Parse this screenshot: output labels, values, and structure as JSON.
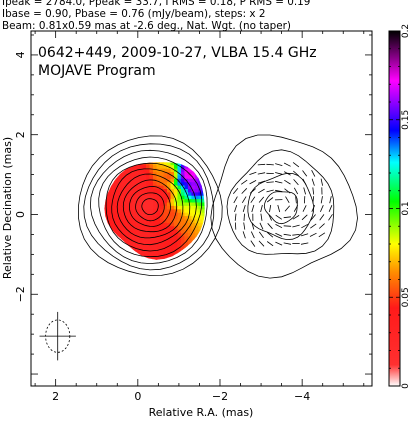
{
  "header": {
    "line1": "Ipeak = 2784.0, Ppeak = 33.7, I RMS = 0.18, P RMS = 0.19",
    "line2": "Ibase = 0.90, Pbase = 0.76 (mJy/beam), steps: x 2",
    "line3": "Beam: 0.81x0.59 mas at -2.6 deg., Nat. Wgt. (no taper)"
  },
  "panel": {
    "title": "0642+449, 2009-10-27, VLBA 15.4 GHz",
    "program": "MOJAVE Program"
  },
  "chart_data": {
    "type": "heatmap",
    "xlabel": "Relative R.A. (mas)",
    "ylabel": "Relative Decination (mas)",
    "xlim": [
      2.6,
      -5.7
    ],
    "ylim": [
      -4.3,
      4.6
    ],
    "x_ticks": [
      2,
      0,
      -2,
      -4
    ],
    "x_tick_labels": [
      "2",
      "0",
      "−2",
      "−4"
    ],
    "y_ticks": [
      4,
      2,
      0,
      -2
    ],
    "y_tick_labels": [
      "4",
      "2",
      "0",
      "−2"
    ],
    "colorbar": {
      "min": 0,
      "max": 0.2,
      "ticks": [
        0,
        0.05,
        0.1,
        0.15,
        0.2
      ],
      "tick_labels": [
        "0",
        "0.05",
        "0.1",
        "0.15",
        "0.2"
      ]
    },
    "left_panel": {
      "center": [
        -0.3,
        0.2
      ],
      "contour_radii": [
        0.2,
        0.35,
        0.5,
        0.65,
        0.8,
        0.95,
        1.1,
        1.25,
        1.42,
        1.58,
        1.75
      ],
      "frac_pol": [
        [
          -1.15,
          0.95,
          0.18
        ],
        [
          -1.0,
          0.8,
          0.15
        ],
        [
          -1.25,
          0.6,
          0.17
        ],
        [
          -1.1,
          0.5,
          0.12
        ],
        [
          -0.95,
          0.3,
          0.09
        ],
        [
          -1.2,
          0.1,
          0.08
        ],
        [
          -1.0,
          -0.2,
          0.06
        ],
        [
          -0.85,
          0.55,
          0.07
        ],
        [
          -0.8,
          0.0,
          0.05
        ],
        [
          -0.7,
          -0.5,
          0.04
        ],
        [
          -0.75,
          0.9,
          0.05
        ],
        [
          -0.6,
          0.45,
          0.03
        ],
        [
          -0.2,
          0.2,
          0.02
        ],
        [
          -0.2,
          -0.7,
          0.03
        ],
        [
          0.1,
          0.8,
          0.03
        ]
      ]
    },
    "right_panel": {
      "center": [
        -3.5,
        0.2
      ],
      "contour_radii": [
        0.4,
        0.8,
        1.3,
        1.75
      ]
    },
    "beam": {
      "center": [
        1.95,
        -3.05
      ],
      "major": 0.81,
      "minor": 0.59,
      "pa_deg": -2.6
    }
  }
}
